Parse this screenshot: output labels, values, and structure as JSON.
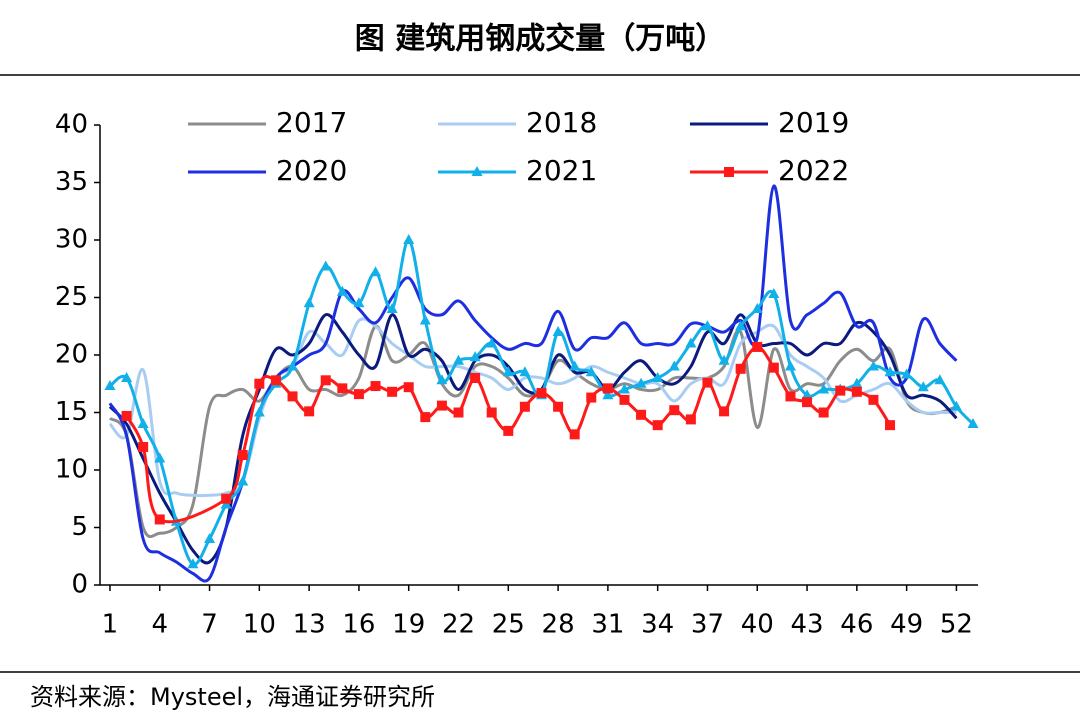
{
  "chart_data": {
    "type": "line",
    "title": "图  建筑用钢成交量（万吨）",
    "source": "资料来源：Mysteel，海通证券研究所",
    "x": [
      1,
      2,
      3,
      4,
      5,
      6,
      7,
      8,
      9,
      10,
      11,
      12,
      13,
      14,
      15,
      16,
      17,
      18,
      19,
      20,
      21,
      22,
      23,
      24,
      25,
      26,
      27,
      28,
      29,
      30,
      31,
      32,
      33,
      34,
      35,
      36,
      37,
      38,
      39,
      40,
      41,
      42,
      43,
      44,
      45,
      46,
      47,
      48,
      49,
      50,
      51,
      52,
      53
    ],
    "xlim": [
      0.4,
      53.3
    ],
    "xticks": [
      1,
      4,
      7,
      10,
      13,
      16,
      19,
      22,
      25,
      28,
      31,
      34,
      37,
      40,
      43,
      46,
      49,
      52
    ],
    "ylim": [
      0,
      40
    ],
    "yticks": [
      0,
      5,
      10,
      15,
      20,
      25,
      30,
      35,
      40
    ],
    "legend": "top",
    "series": [
      {
        "name": "2017",
        "color": "#8c8c8c",
        "values": [
          14.5,
          13,
          5,
          4.5,
          5,
          7,
          15.5,
          16.5,
          17,
          16,
          18,
          19,
          17,
          17,
          16.5,
          18,
          22.5,
          19.5,
          20,
          21,
          17.5,
          16.5,
          19,
          19,
          18,
          16.5,
          17,
          19.5,
          18.5,
          17.5,
          17,
          17.5,
          17,
          17,
          18,
          18,
          18,
          19,
          22,
          13.7,
          20.5,
          17,
          17.5,
          17.5,
          19.5,
          20.5,
          19.5,
          20.5,
          16,
          15,
          15,
          15.5,
          null
        ]
      },
      {
        "name": "2018",
        "color": "#a9cdf2",
        "values": [
          14,
          13,
          18.7,
          9,
          8,
          7.8,
          7.8,
          8,
          9,
          14.5,
          18,
          19,
          22,
          21,
          20,
          23,
          22.5,
          21,
          20,
          19,
          19,
          19,
          18.5,
          18,
          17,
          18,
          18,
          17.5,
          18,
          19,
          18.5,
          18,
          17.5,
          17.5,
          16,
          17.5,
          18,
          17.5,
          21,
          22,
          22.5,
          20,
          19,
          18,
          16,
          16.5,
          17,
          17.5,
          16,
          15,
          15,
          15,
          null
        ]
      },
      {
        "name": "2019",
        "color": "#0b1a7e",
        "values": [
          15.5,
          14,
          11,
          8,
          5.5,
          3,
          2,
          5,
          13,
          17,
          20.5,
          20,
          21,
          23.5,
          22,
          20,
          19,
          23.5,
          20,
          20.5,
          19.5,
          17,
          19.5,
          20,
          19,
          17,
          17,
          20,
          18.5,
          18.5,
          17,
          18.5,
          19.5,
          18,
          17.5,
          19,
          22,
          21,
          23.5,
          21,
          21,
          21,
          20,
          21,
          21,
          22.8,
          22,
          20,
          16.5,
          16.5,
          16,
          14.5,
          null
        ]
      },
      {
        "name": "2020",
        "color": "#1e2fe0",
        "values": [
          15.8,
          13,
          4,
          2.8,
          2,
          1,
          0.6,
          5,
          9,
          15,
          18,
          19,
          20,
          21,
          25.5,
          24,
          22.8,
          25,
          26.7,
          24,
          23.5,
          24.7,
          23,
          21.5,
          20.5,
          21,
          21,
          23.8,
          20.5,
          21.5,
          21.5,
          22.8,
          21,
          21,
          21,
          22.7,
          22.5,
          22,
          23,
          21.5,
          34.7,
          23,
          23.5,
          24.5,
          25.4,
          22.5,
          22.8,
          18,
          18,
          23.1,
          21,
          19.5,
          null
        ]
      },
      {
        "name": "2021",
        "color": "#12b0e8",
        "marker": "triangle",
        "values": [
          17.3,
          18,
          14,
          11,
          5.5,
          1.8,
          4,
          7,
          9,
          15,
          17.5,
          19,
          24.5,
          27.7,
          25.5,
          24.5,
          27.2,
          24,
          30,
          23,
          17.8,
          19.5,
          19.8,
          21,
          18.5,
          18.5,
          16.5,
          22,
          19,
          18.5,
          16.5,
          17,
          17.5,
          18,
          19,
          21,
          22.5,
          19.5,
          22.5,
          24,
          25.3,
          19,
          16.5,
          17,
          17,
          17.5,
          19,
          18.5,
          18.3,
          17.2,
          17.8,
          15.5,
          14
        ]
      },
      {
        "name": "2022",
        "color": "#ff1a1a",
        "marker": "square",
        "x": [
          2,
          3,
          4,
          8,
          9,
          10,
          11,
          12,
          13,
          14,
          15,
          16,
          17,
          18,
          19,
          20,
          21,
          22,
          23,
          24,
          25,
          26,
          27,
          28,
          29,
          30,
          31,
          32,
          33,
          34,
          35,
          36,
          37,
          38,
          39,
          40,
          41,
          42,
          43,
          44,
          45,
          46,
          47,
          48
        ],
        "values": [
          14.7,
          12,
          5.7,
          7.5,
          11.3,
          17.5,
          17.8,
          16.4,
          15.1,
          17.8,
          17.1,
          16.6,
          17.3,
          16.8,
          17.2,
          14.6,
          15.6,
          15,
          18,
          15,
          13.4,
          15.5,
          16.7,
          15.5,
          13.1,
          16.3,
          17.1,
          16.1,
          14.8,
          13.9,
          15.2,
          14.4,
          17.6,
          15.1,
          18.8,
          20.7,
          18.9,
          16.4,
          15.9,
          15,
          16.9,
          16.8,
          16.1,
          13.9
        ]
      }
    ]
  }
}
